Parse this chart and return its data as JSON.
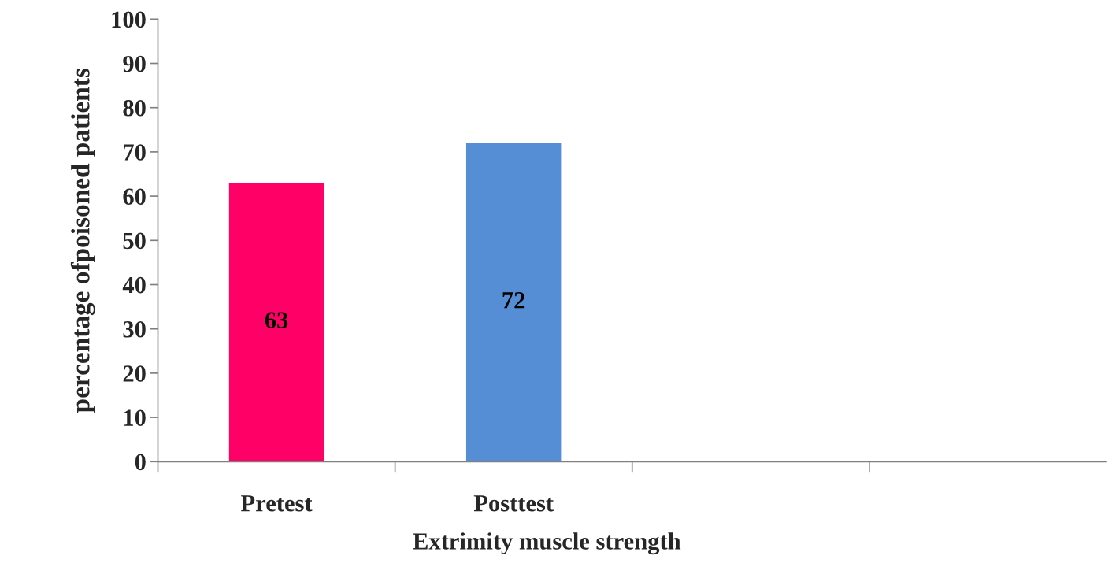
{
  "chart_data": {
    "type": "bar",
    "xlabel": "Extrimity muscle strength",
    "ylabel": "percentage ofpoisoned patients",
    "categories": [
      "Pretest",
      "Posttest",
      null,
      null
    ],
    "values": [
      63,
      72,
      null,
      null
    ],
    "colors": [
      "#ff0066",
      "#558ed5",
      null,
      null
    ],
    "ylim": [
      0,
      100
    ],
    "yticks": [
      0,
      10,
      20,
      30,
      40,
      50,
      60,
      70,
      80,
      90,
      100
    ],
    "data_labels": true,
    "grid": false,
    "legend": false
  }
}
